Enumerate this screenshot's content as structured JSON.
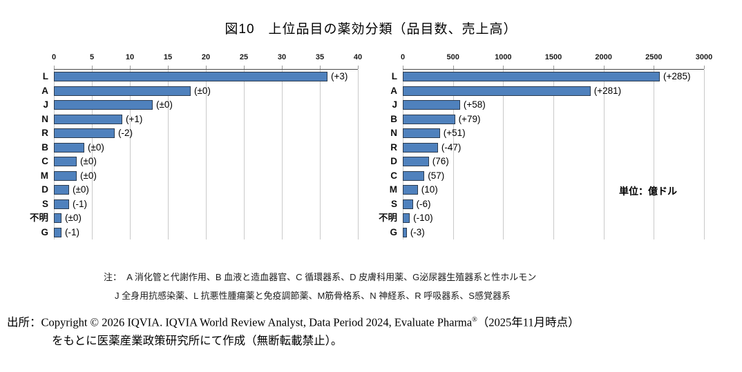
{
  "title": "図10　上位品目の薬効分類（品目数、売上高）",
  "unit_label": "単位：億ドル",
  "colors": {
    "bar_fill": "#4f81bd",
    "bar_border": "#2b3b4f",
    "gridline": "#c9c9c9",
    "axis_line": "#4a4a4a",
    "background": "#ffffff"
  },
  "notes": {
    "prefix": "注：",
    "line1": "A 消化管と代謝作用、B 血液と造血器官、C 循環器系、D 皮膚科用薬、G泌尿器生殖器系と性ホルモン",
    "line2": "J 全身用抗感染薬、L 抗悪性腫瘍薬と免疫調節薬、M筋骨格系、N 神経系、R 呼吸器系、S感覚器系"
  },
  "source": {
    "prefix": "出所：",
    "copyright": "Copyright © 2026 IQVIA. IQVIA World Review Analyst, Data Period 2024, Evaluate Pharma",
    "registered_mark": "®",
    "asof": "（2025年11月時点）",
    "line2": "をもとに医薬産業政策研究所にて作成（無断転載禁止）。"
  },
  "chart_data": [
    {
      "type": "bar",
      "orientation": "horizontal",
      "name": "品目数",
      "categories": [
        "L",
        "A",
        "J",
        "N",
        "R",
        "B",
        "C",
        "M",
        "D",
        "S",
        "不明",
        "G"
      ],
      "values": [
        36,
        18,
        13,
        9,
        8,
        4,
        3,
        3,
        2,
        2,
        1,
        1
      ],
      "bar_labels": [
        "(+3)",
        "(±0)",
        "(±0)",
        "(+1)",
        "(-2)",
        "(±0)",
        "(±0)",
        "(±0)",
        "(±0)",
        "(-1)",
        "(±0)",
        "(-1)"
      ],
      "xlim": [
        0,
        40
      ],
      "xticks": [
        0,
        5,
        10,
        15,
        20,
        25,
        30,
        35,
        40
      ],
      "grid": true,
      "axis_position": "top"
    },
    {
      "type": "bar",
      "orientation": "horizontal",
      "name": "売上高",
      "unit": "億ドル",
      "categories": [
        "L",
        "A",
        "J",
        "B",
        "N",
        "R",
        "D",
        "C",
        "M",
        "S",
        "不明",
        "G"
      ],
      "values": [
        2560,
        1870,
        570,
        520,
        370,
        350,
        260,
        215,
        150,
        100,
        70,
        40
      ],
      "bar_labels": [
        "(+285)",
        "(+281)",
        "(+58)",
        "(+79)",
        "(+51)",
        "(-47)",
        "(76)",
        "(57)",
        "(10)",
        "(-6)",
        "(-10)",
        "(-3)"
      ],
      "xlim": [
        0,
        3000
      ],
      "xticks": [
        0,
        500,
        1000,
        1500,
        2000,
        2500,
        3000
      ],
      "grid": true,
      "axis_position": "top"
    }
  ]
}
